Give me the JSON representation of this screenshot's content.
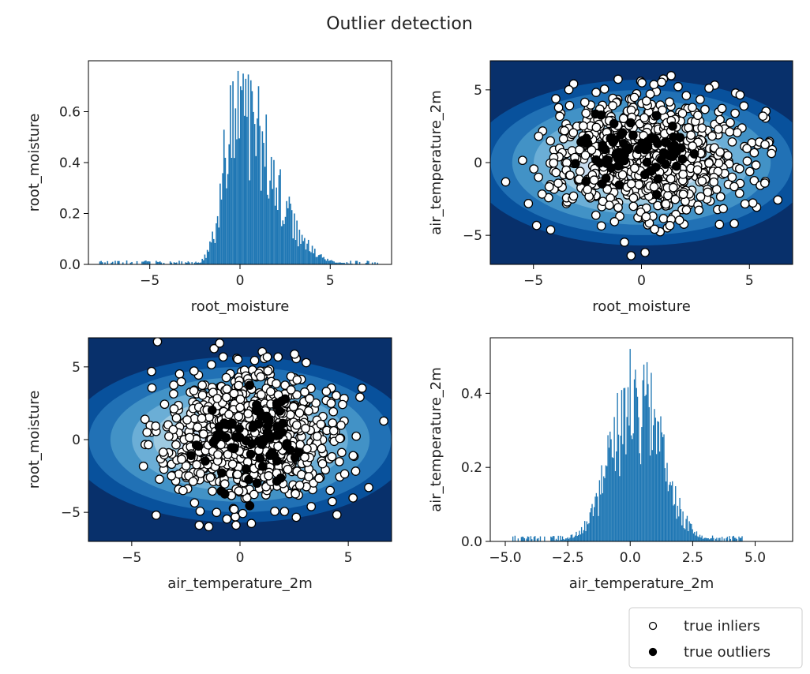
{
  "figure": {
    "title": "Outlier detection"
  },
  "legend": {
    "placement": "bottom-right",
    "entries": [
      {
        "label": "true inliers",
        "marker": "hollow-circle"
      },
      {
        "label": "true outliers",
        "marker": "filled-circle"
      }
    ]
  },
  "colors": {
    "histogram_bar": "#1f77b4",
    "contour_levels": [
      "#f7fbff",
      "#deebf7",
      "#c6dbef",
      "#9ecae1",
      "#6baed6",
      "#4292c6",
      "#2171b5",
      "#08519c",
      "#08306b"
    ],
    "inlier_fill": "#ffffff",
    "outlier_fill": "#000000",
    "marker_edge": "#000000"
  },
  "chart_data": [
    {
      "type": "bar",
      "name": "top-left",
      "title": "",
      "xlabel": "root_moisture",
      "ylabel": "root_moisture",
      "xlim": [
        -8.4,
        8.4
      ],
      "ylim": [
        0,
        0.8
      ],
      "xticks": [
        -5,
        0,
        5
      ],
      "yticks": [
        0.0,
        0.2,
        0.4,
        0.6
      ],
      "ytick_labels": [
        "0.0",
        "0.2",
        "0.4",
        "0.6"
      ],
      "histogram": {
        "center": -0.2,
        "left_scale": 0.7,
        "right_scale": 1.9,
        "peak": 0.62,
        "range": [
          -7.8,
          7.8
        ],
        "max_value": 0.76,
        "max_at": -0.1
      },
      "grid": false
    },
    {
      "type": "scatter",
      "name": "top-right",
      "title": "",
      "xlabel": "root_moisture",
      "ylabel": "air_temperature_2m",
      "xlim": [
        -7,
        7
      ],
      "ylim": [
        -7,
        7
      ],
      "xticks": [
        -5,
        0,
        5
      ],
      "yticks": [
        -5,
        0,
        5
      ],
      "background": "decision-function contours",
      "contour_ellipse": {
        "cx": 0,
        "cy": 0,
        "rx": 4.2,
        "ry": 3.0
      },
      "inliers": {
        "count": 900,
        "cx": 0.3,
        "cy": 0.3,
        "sx": 2.2,
        "sy": 2.0
      },
      "outliers": {
        "count": 75,
        "cx": 0.0,
        "cy": 0.8,
        "sx": 1.6,
        "sy": 1.2
      },
      "grid": false
    },
    {
      "type": "scatter",
      "name": "bottom-left",
      "title": "",
      "xlabel": "air_temperature_2m",
      "ylabel": "root_moisture",
      "xlim": [
        -7,
        7
      ],
      "ylim": [
        -7,
        7
      ],
      "xticks": [
        -5,
        0,
        5
      ],
      "yticks": [
        -5,
        0,
        5
      ],
      "background": "decision-function contours",
      "contour_ellipse": {
        "cx": 0,
        "cy": 0,
        "rx": 4.2,
        "ry": 3.0
      },
      "inliers": {
        "count": 900,
        "cx": 0.3,
        "cy": 0.3,
        "sx": 2.0,
        "sy": 2.2
      },
      "outliers": {
        "count": 75,
        "cx": 0.8,
        "cy": 0.0,
        "sx": 1.2,
        "sy": 1.6
      },
      "grid": false
    },
    {
      "type": "bar",
      "name": "bottom-right",
      "title": "",
      "xlabel": "air_temperature_2m",
      "ylabel": "air_temperature_2m",
      "xlim": [
        -5.6,
        6.5
      ],
      "ylim": [
        0,
        0.55
      ],
      "xticks": [
        -5.0,
        -2.5,
        0.0,
        2.5,
        5.0
      ],
      "xtick_labels": [
        "−5.0",
        "−2.5",
        "0.0",
        "2.5",
        "5.0"
      ],
      "yticks": [
        0.0,
        0.2,
        0.4
      ],
      "ytick_labels": [
        "0.0",
        "0.2",
        "0.4"
      ],
      "histogram": {
        "center": 0.25,
        "left_scale": 1.0,
        "right_scale": 1.0,
        "peak": 0.38,
        "range": [
          -4.8,
          4.5
        ],
        "max_value": 0.52,
        "max_at": 0.0
      },
      "grid": false
    }
  ]
}
